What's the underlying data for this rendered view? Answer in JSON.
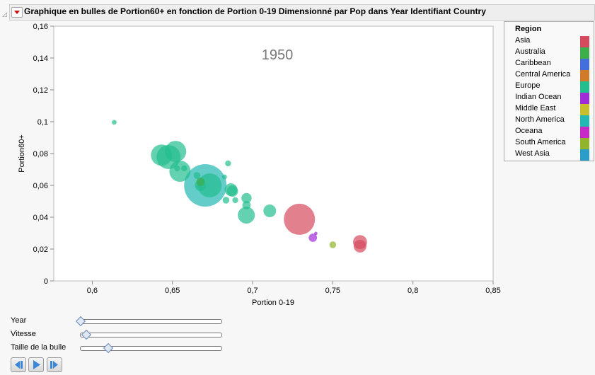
{
  "title": "Graphique en bulles de Portion60+ en fonction de Portion 0-19 Dimensionné par Pop dans Year Identifiant Country",
  "chart_data": {
    "type": "scatter",
    "subtype": "bubble",
    "annotation": "1950",
    "xlabel": "Portion 0-19",
    "ylabel": "Portion60+",
    "xlim": [
      0.576,
      0.85
    ],
    "ylim": [
      0,
      0.16
    ],
    "xticks": [
      "0,6",
      "0,65",
      "0,7",
      "0,75",
      "0,8",
      "0,85"
    ],
    "xtick_values": [
      0.6,
      0.65,
      0.7,
      0.75,
      0.8,
      0.85
    ],
    "yticks": [
      "0",
      "0,02",
      "0,04",
      "0,06",
      "0,08",
      "0,1",
      "0,12",
      "0,14",
      "0,16"
    ],
    "ytick_values": [
      0,
      0.02,
      0.04,
      0.06,
      0.08,
      0.1,
      0.12,
      0.14,
      0.16
    ],
    "grid": false,
    "legend_placement": "right",
    "legend_title": "Region",
    "regions": [
      {
        "name": "Asia",
        "color": "#d64a5e"
      },
      {
        "name": "Australia",
        "color": "#3cae4a"
      },
      {
        "name": "Caribbean",
        "color": "#436fdc"
      },
      {
        "name": "Central America",
        "color": "#d07a2a"
      },
      {
        "name": "Europe",
        "color": "#22be8e"
      },
      {
        "name": "Indian Ocean",
        "color": "#a02cd8"
      },
      {
        "name": "Middle East",
        "color": "#c8c02a"
      },
      {
        "name": "North America",
        "color": "#22b8b4"
      },
      {
        "name": "Oceana",
        "color": "#c82ac8"
      },
      {
        "name": "South America",
        "color": "#92b42a"
      },
      {
        "name": "West Asia",
        "color": "#2a9ec8"
      }
    ],
    "points": [
      {
        "region": "North America",
        "x": 0.6705,
        "y": 0.06,
        "pop": 156
      },
      {
        "region": "Asia",
        "x": 0.7292,
        "y": 0.0387,
        "pop": 84
      },
      {
        "region": "Europe",
        "x": 0.6432,
        "y": 0.079,
        "pop": 39
      },
      {
        "region": "Europe",
        "x": 0.6476,
        "y": 0.0778,
        "pop": 50
      },
      {
        "region": "Europe",
        "x": 0.652,
        "y": 0.0813,
        "pop": 39
      },
      {
        "region": "Europe",
        "x": 0.6547,
        "y": 0.0689,
        "pop": 39
      },
      {
        "region": "Europe",
        "x": 0.6732,
        "y": 0.06,
        "pop": 50
      },
      {
        "region": "Europe",
        "x": 0.6675,
        "y": 0.06,
        "pop": 11
      },
      {
        "region": "Europe",
        "x": 0.6653,
        "y": 0.0662,
        "pop": 4
      },
      {
        "region": "Europe",
        "x": 0.6847,
        "y": 0.0738,
        "pop": 3
      },
      {
        "region": "Europe",
        "x": 0.6825,
        "y": 0.0653,
        "pop": 2
      },
      {
        "region": "Europe",
        "x": 0.6865,
        "y": 0.0573,
        "pop": 14
      },
      {
        "region": "Europe",
        "x": 0.6874,
        "y": 0.0564,
        "pop": 11
      },
      {
        "region": "Europe",
        "x": 0.6834,
        "y": 0.0507,
        "pop": 4
      },
      {
        "region": "Europe",
        "x": 0.6892,
        "y": 0.0507,
        "pop": 3
      },
      {
        "region": "Europe",
        "x": 0.6962,
        "y": 0.052,
        "pop": 9
      },
      {
        "region": "Europe",
        "x": 0.6962,
        "y": 0.0476,
        "pop": 6
      },
      {
        "region": "Europe",
        "x": 0.6961,
        "y": 0.0413,
        "pop": 25
      },
      {
        "region": "Europe",
        "x": 0.7107,
        "y": 0.044,
        "pop": 14
      },
      {
        "region": "Europe",
        "x": 0.6573,
        "y": 0.0707,
        "pop": 3
      },
      {
        "region": "Europe",
        "x": 0.6529,
        "y": 0.0707,
        "pop": 3
      },
      {
        "region": "Europe",
        "x": 0.6137,
        "y": 0.0996,
        "pop": 2
      },
      {
        "region": "Australia",
        "x": 0.6675,
        "y": 0.0622,
        "pop": 6
      },
      {
        "region": "Asia",
        "x": 0.767,
        "y": 0.0244,
        "pop": 17
      },
      {
        "region": "Asia",
        "x": 0.767,
        "y": 0.0218,
        "pop": 14
      },
      {
        "region": "Indian Ocean",
        "x": 0.7376,
        "y": 0.0271,
        "pop": 6
      },
      {
        "region": "Indian Ocean",
        "x": 0.7394,
        "y": 0.0298,
        "pop": 1
      },
      {
        "region": "South America",
        "x": 0.75,
        "y": 0.0227,
        "pop": 4
      }
    ]
  },
  "controls": {
    "year_label": "Year",
    "year_value": 0.0,
    "speed_label": "Vitesse",
    "speed_value": 0.04,
    "bubble_size_label": "Taille de la bulle",
    "bubble_size_value": 0.2
  }
}
